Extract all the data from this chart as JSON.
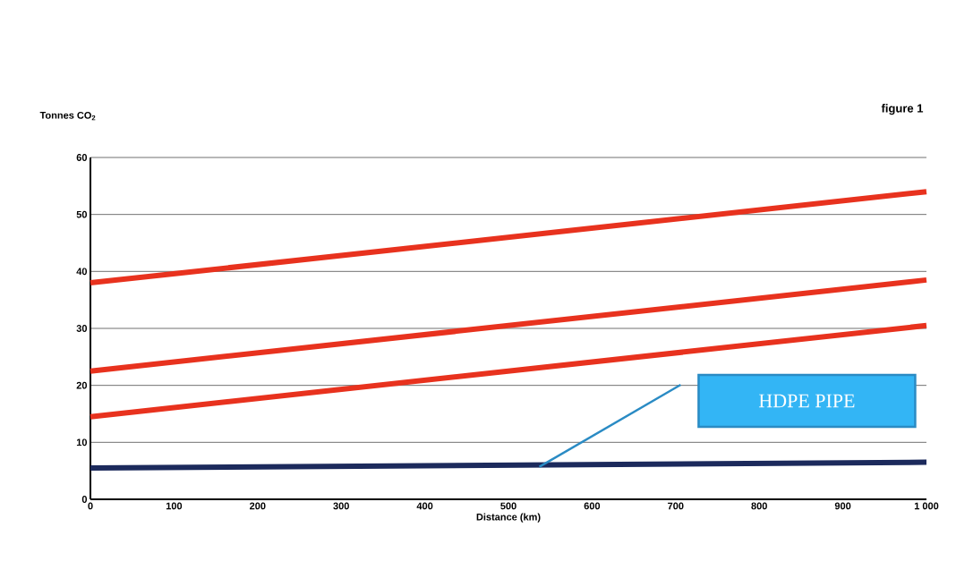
{
  "chart_data": {
    "type": "line",
    "title": "figure 1",
    "xlabel": "Distance (km)",
    "ylabel": "Tonnes CO$_{2}$",
    "x": [
      0,
      1000
    ],
    "series": [
      {
        "color": "#e8321e",
        "values": [
          38,
          54
        ]
      },
      {
        "color": "#e8321e",
        "values": [
          22.5,
          38.5
        ]
      },
      {
        "color": "#e8321e",
        "values": [
          14.5,
          30.5
        ]
      },
      {
        "color": "#1c2a5c",
        "values": [
          5.5,
          6.5
        ]
      }
    ],
    "xlim": [
      0,
      1000
    ],
    "ylim": [
      0,
      60
    ],
    "xticks": [
      0,
      100,
      200,
      300,
      400,
      500,
      600,
      700,
      800,
      900,
      {
        "value": 1000,
        "label": "1 000"
      }
    ],
    "yticks": [
      0,
      10,
      20,
      30,
      40,
      50,
      60
    ],
    "grid": "y",
    "marker": "none",
    "line_style": "solid",
    "annotations": [
      "HDPE PIPE"
    ]
  }
}
